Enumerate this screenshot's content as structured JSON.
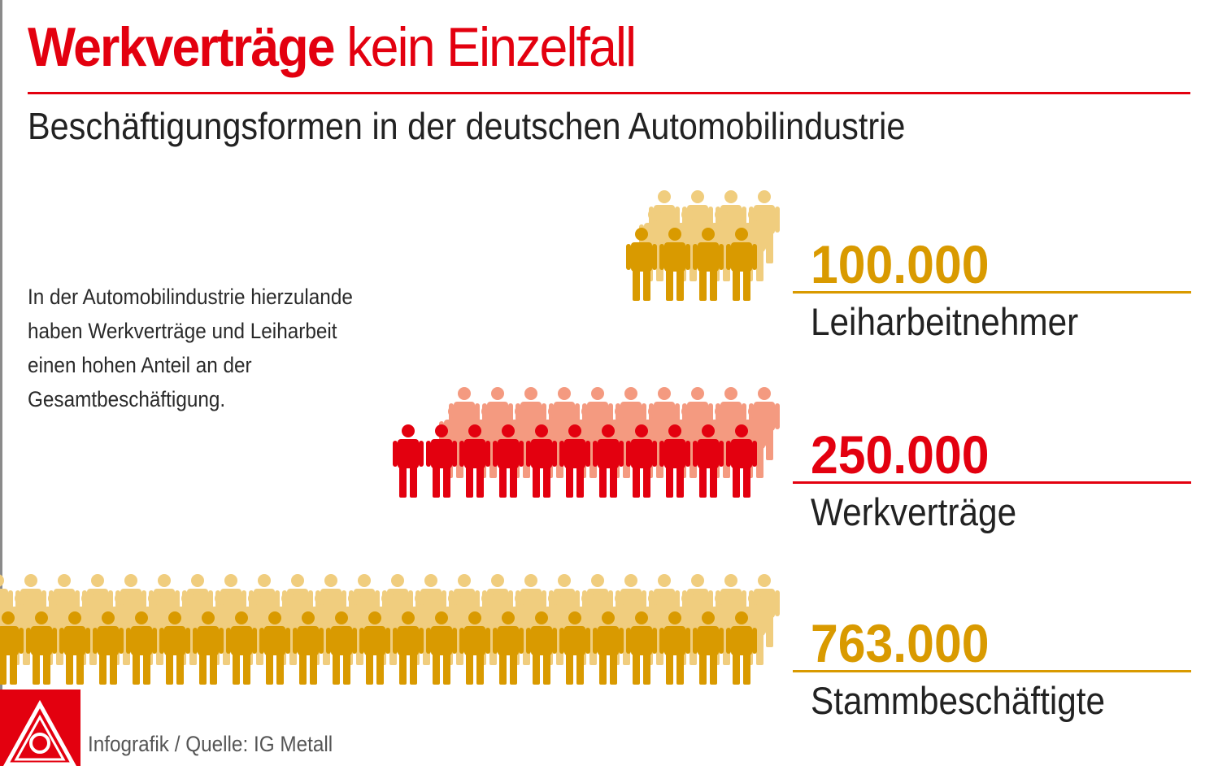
{
  "title": {
    "bold": "Werkverträge",
    "rest": "kein Einzelfall"
  },
  "subtitle": "Beschäftigungsformen in der deutschen Automobilindustrie",
  "intro": "In der Automobilindustrie hierzulande\nhaben Werkverträge und Leiharbeit\neinen hohen Anteil an der\nGesamtbeschäftigung.",
  "source": "Infografik / Quelle: IG Metall",
  "colors": {
    "accent_red": "#e3000f",
    "gold": "#d99a00",
    "gold_light": "#f0cd7e",
    "red_light": "#f49a80"
  },
  "chart_data": {
    "type": "pictogram",
    "categories": [
      "Leiharbeitnehmer",
      "Werkverträge",
      "Stammbeschäftigte"
    ],
    "values": [
      100000,
      250000,
      763000
    ],
    "value_labels": [
      "100.000",
      "250.000",
      "763.000"
    ],
    "colors": [
      "#d99a00",
      "#e3000f",
      "#d99a00"
    ],
    "back_colors": [
      "#f0cd7e",
      "#f49a80",
      "#f0cd7e"
    ],
    "icon": "person-icon"
  }
}
